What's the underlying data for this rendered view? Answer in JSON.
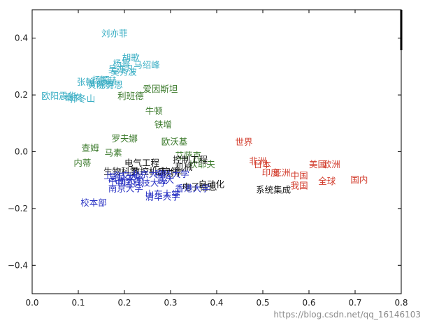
{
  "chart_data": {
    "type": "scatter",
    "xlim": [
      0.0,
      0.8
    ],
    "ylim": [
      -0.5,
      0.5
    ],
    "grid": false,
    "xticks": [
      "0.0",
      "0.1",
      "0.2",
      "0.3",
      "0.4",
      "0.5",
      "0.6",
      "0.7",
      "0.8"
    ],
    "yticks": [
      "−0.4",
      "−0.2",
      "0.0",
      "0.2",
      "0.4"
    ],
    "xtick_values": [
      0.0,
      0.1,
      0.2,
      0.3,
      0.4,
      0.5,
      0.6,
      0.7,
      0.8
    ],
    "ytick_values": [
      -0.4,
      -0.2,
      0.0,
      0.2,
      0.4
    ],
    "colors": {
      "cyan": "#3aaec4",
      "green": "#3c7a2c",
      "red": "#d23b2b",
      "blue": "#2c35c4",
      "black": "#111111"
    },
    "points": [
      {
        "text": "刘亦菲",
        "x": 0.15,
        "y": 0.415,
        "color": "cyan"
      },
      {
        "text": "胡歌",
        "x": 0.195,
        "y": 0.33,
        "color": "cyan"
      },
      {
        "text": "杨幂",
        "x": 0.175,
        "y": 0.31,
        "color": "cyan"
      },
      {
        "text": "马绍峰",
        "x": 0.22,
        "y": 0.305,
        "color": "cyan"
      },
      {
        "text": "吴亦凡",
        "x": 0.165,
        "y": 0.29,
        "color": "cyan"
      },
      {
        "text": "吴秀波",
        "x": 0.17,
        "y": 0.28,
        "color": "cyan"
      },
      {
        "text": "张翰",
        "x": 0.097,
        "y": 0.245,
        "color": "cyan"
      },
      {
        "text": "杨颖",
        "x": 0.13,
        "y": 0.252,
        "color": "cyan"
      },
      {
        "text": "陈赫",
        "x": 0.145,
        "y": 0.25,
        "color": "cyan"
      },
      {
        "text": "黄晓明",
        "x": 0.12,
        "y": 0.235,
        "color": "cyan"
      },
      {
        "text": "陈乔恩",
        "x": 0.14,
        "y": 0.235,
        "color": "cyan"
      },
      {
        "text": "欧阳震华",
        "x": 0.02,
        "y": 0.195,
        "color": "cyan"
      },
      {
        "text": "秦岚",
        "x": 0.07,
        "y": 0.19,
        "color": "cyan"
      },
      {
        "text": "郭冬山",
        "x": 0.08,
        "y": 0.185,
        "color": "cyan"
      },
      {
        "text": "爱因斯坦",
        "x": 0.24,
        "y": 0.22,
        "color": "green"
      },
      {
        "text": "利班德",
        "x": 0.185,
        "y": 0.195,
        "color": "green"
      },
      {
        "text": "牛顿",
        "x": 0.245,
        "y": 0.143,
        "color": "green"
      },
      {
        "text": "铁增",
        "x": 0.265,
        "y": 0.095,
        "color": "green"
      },
      {
        "text": "罗夫娜",
        "x": 0.172,
        "y": 0.045,
        "color": "green"
      },
      {
        "text": "欧沃基",
        "x": 0.28,
        "y": 0.035,
        "color": "green"
      },
      {
        "text": "查姆",
        "x": 0.107,
        "y": 0.012,
        "color": "green"
      },
      {
        "text": "马素",
        "x": 0.157,
        "y": -0.005,
        "color": "green"
      },
      {
        "text": "艾萨克",
        "x": 0.31,
        "y": -0.015,
        "color": "green"
      },
      {
        "text": "内蒂",
        "x": 0.09,
        "y": -0.04,
        "color": "green"
      },
      {
        "text": "坎耶夫",
        "x": 0.34,
        "y": -0.045,
        "color": "green"
      },
      {
        "text": "控制工程",
        "x": 0.305,
        "y": -0.03,
        "color": "black"
      },
      {
        "text": "电气工程",
        "x": 0.2,
        "y": -0.04,
        "color": "black"
      },
      {
        "text": "机械",
        "x": 0.31,
        "y": -0.055,
        "color": "black"
      },
      {
        "text": "软件",
        "x": 0.28,
        "y": -0.07,
        "color": "black"
      },
      {
        "text": "生物科学",
        "x": 0.155,
        "y": -0.07,
        "color": "black"
      },
      {
        "text": "数控机床",
        "x": 0.215,
        "y": -0.07,
        "color": "black"
      },
      {
        "text": "动力学",
        "x": 0.27,
        "y": -0.075,
        "color": "black"
      },
      {
        "text": "自动化",
        "x": 0.36,
        "y": -0.115,
        "color": "black"
      },
      {
        "text": "电子信息",
        "x": 0.325,
        "y": -0.125,
        "color": "black"
      },
      {
        "text": "系统集成",
        "x": 0.485,
        "y": -0.135,
        "color": "black"
      },
      {
        "text": "上海交大",
        "x": 0.155,
        "y": -0.085,
        "color": "blue"
      },
      {
        "text": "复旦大学",
        "x": 0.165,
        "y": -0.09,
        "color": "blue"
      },
      {
        "text": "北京大学",
        "x": 0.215,
        "y": -0.08,
        "color": "blue"
      },
      {
        "text": "科技大学",
        "x": 0.265,
        "y": -0.08,
        "color": "blue"
      },
      {
        "text": "中南大学",
        "x": 0.165,
        "y": -0.105,
        "color": "blue"
      },
      {
        "text": "中国科技大学",
        "x": 0.18,
        "y": -0.11,
        "color": "blue"
      },
      {
        "text": "武大",
        "x": 0.27,
        "y": -0.1,
        "color": "blue"
      },
      {
        "text": "南京大学",
        "x": 0.165,
        "y": -0.13,
        "color": "blue"
      },
      {
        "text": "香港大学",
        "x": 0.31,
        "y": -0.13,
        "color": "blue"
      },
      {
        "text": "山东大学",
        "x": 0.245,
        "y": -0.15,
        "color": "blue"
      },
      {
        "text": "清华大学",
        "x": 0.245,
        "y": -0.16,
        "color": "blue"
      },
      {
        "text": "校本部",
        "x": 0.105,
        "y": -0.18,
        "color": "blue"
      },
      {
        "text": "世界",
        "x": 0.44,
        "y": 0.033,
        "color": "red"
      },
      {
        "text": "非洲",
        "x": 0.47,
        "y": -0.035,
        "color": "red"
      },
      {
        "text": "日本",
        "x": 0.48,
        "y": -0.045,
        "color": "red"
      },
      {
        "text": "美国",
        "x": 0.6,
        "y": -0.045,
        "color": "red"
      },
      {
        "text": "欧洲",
        "x": 0.63,
        "y": -0.045,
        "color": "red"
      },
      {
        "text": "印度",
        "x": 0.498,
        "y": -0.075,
        "color": "red"
      },
      {
        "text": "亚洲",
        "x": 0.522,
        "y": -0.075,
        "color": "red"
      },
      {
        "text": "中国",
        "x": 0.56,
        "y": -0.085,
        "color": "red"
      },
      {
        "text": "国内",
        "x": 0.69,
        "y": -0.1,
        "color": "red"
      },
      {
        "text": "全球",
        "x": 0.62,
        "y": -0.105,
        "color": "red"
      },
      {
        "text": "我国",
        "x": 0.56,
        "y": -0.12,
        "color": "red"
      }
    ]
  },
  "watermark": {
    "text": "https://blog.csdn.net/qq_16146103"
  }
}
